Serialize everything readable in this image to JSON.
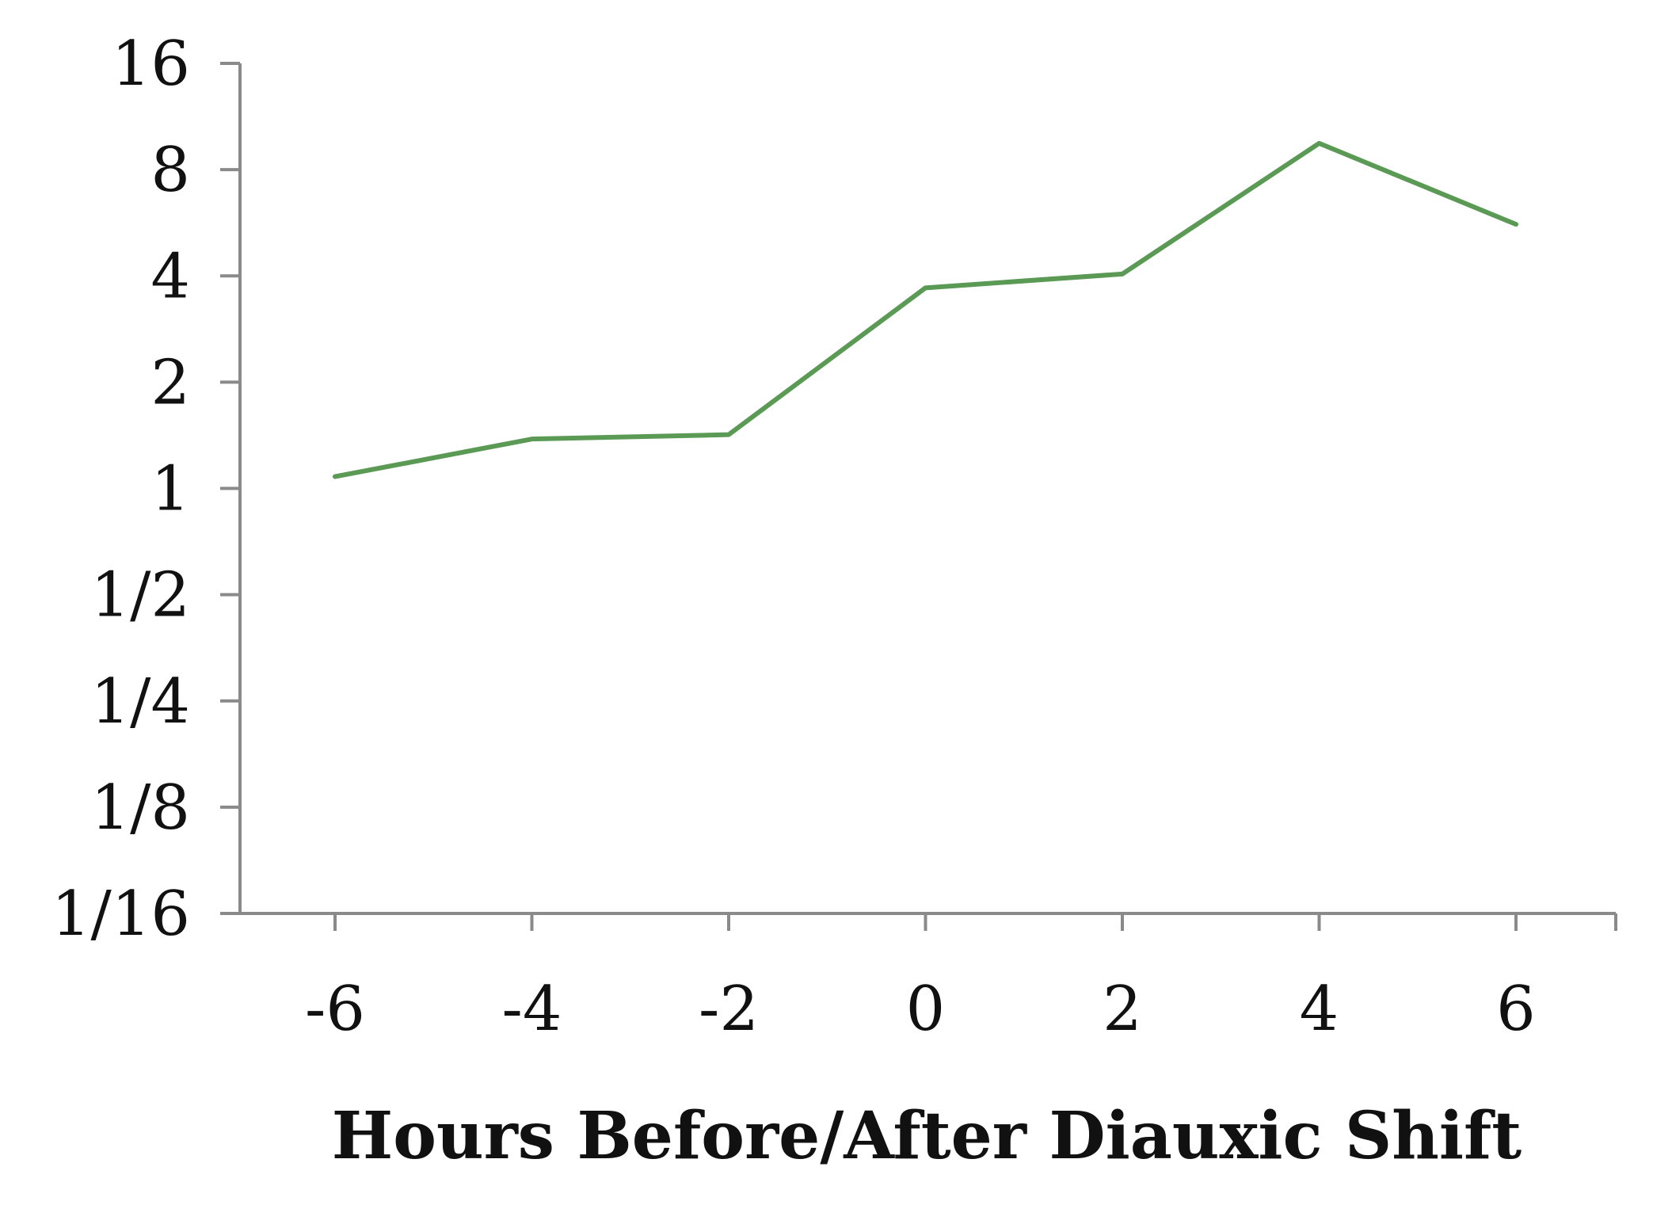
{
  "chart_data": {
    "type": "line",
    "title": "",
    "xlabel": "Hours Before/After Diauxic Shift",
    "ylabel": "",
    "y_scale": "log2",
    "ylim": [
      0.0625,
      16
    ],
    "xlim": [
      -6,
      6
    ],
    "grid": false,
    "x_ticks": [
      "-6",
      "-4",
      "-2",
      "0",
      "2",
      "4",
      "6"
    ],
    "y_ticks": [
      "16",
      "8",
      "4",
      "2",
      "1",
      "1/2",
      "1/4",
      "1/8",
      "1/16"
    ],
    "x": [
      -6,
      -4,
      -2,
      0,
      2,
      4,
      6
    ],
    "series": [
      {
        "values": [
          1.08,
          1.38,
          1.42,
          3.7,
          4.05,
          9.5,
          5.6
        ],
        "color": "#5a9a55"
      }
    ]
  }
}
